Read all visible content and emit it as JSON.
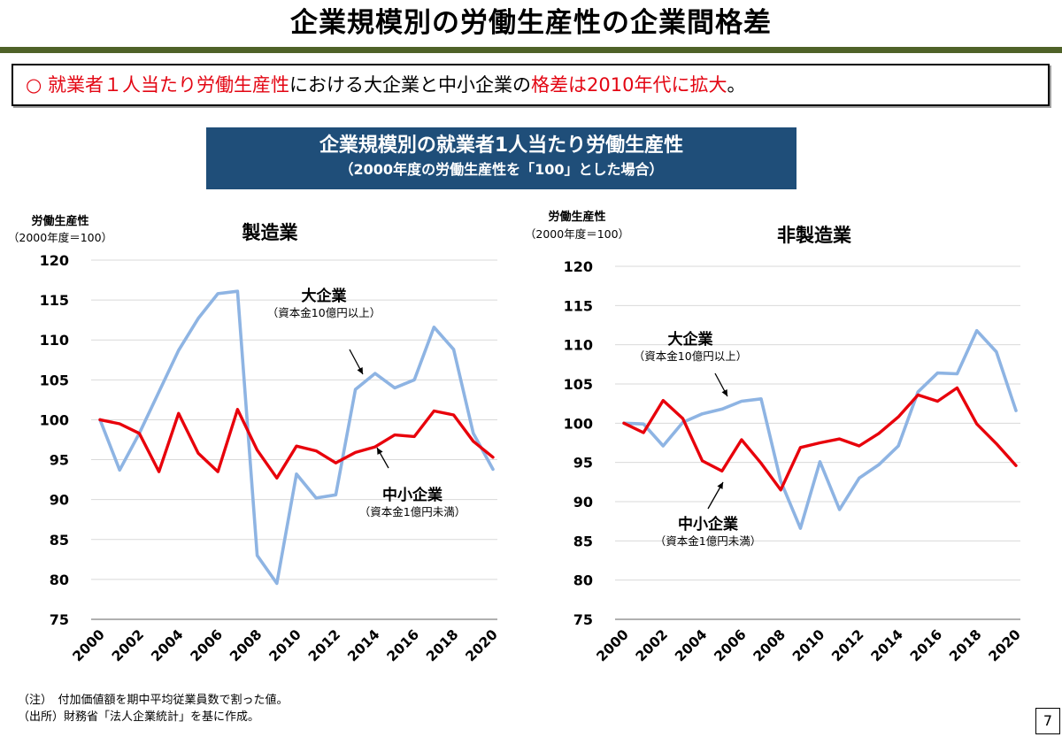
{
  "page": {
    "title": "企業規模別の労働生産性の企業間格差",
    "summary": {
      "marker": "○",
      "seg1": "就業者１人当たり労働生産性",
      "seg2": "における大企業と中小企業の",
      "seg3": "格差は2010年代に拡大",
      "seg4": "。"
    },
    "banner": {
      "line1": "企業規模別の就業者1人当たり労働生産性",
      "line2": "（2000年度の労働生産性を「100」とした場合）"
    },
    "notes": {
      "note": "（注）　付加価値額を期中平均従業員数で割った値。",
      "source": "（出所）財務省「法人企業統計」を基に作成。"
    },
    "page_number": "7"
  },
  "colors": {
    "large": "#8eb4e3",
    "small": "#e8000b",
    "grid": "#d9d9d9",
    "title_bar": "#4f6228",
    "banner": "#1f4e79",
    "highlight": "#e30613"
  },
  "chart_data": [
    {
      "type": "line",
      "title": "製造業",
      "ylabel_line1": "労働生産性",
      "ylabel_line2": "（2000年度＝100）",
      "ylim": [
        75,
        120
      ],
      "yticks": [
        75,
        80,
        85,
        90,
        95,
        100,
        105,
        110,
        115,
        120
      ],
      "x": [
        2000,
        2001,
        2002,
        2003,
        2004,
        2005,
        2006,
        2007,
        2008,
        2009,
        2010,
        2011,
        2012,
        2013,
        2014,
        2015,
        2016,
        2017,
        2018,
        2019,
        2020
      ],
      "xtick_labels": [
        "2000",
        "2002",
        "2004",
        "2006",
        "2008",
        "2010",
        "2012",
        "2014",
        "2016",
        "2018",
        "2020"
      ],
      "series": [
        {
          "name": "大企業",
          "note": "（資本金10億円以上）",
          "color": "#8eb4e3",
          "values": [
            100,
            93.7,
            98.3,
            103.5,
            108.7,
            112.7,
            115.8,
            116.1,
            83.0,
            79.5,
            93.2,
            90.2,
            90.6,
            103.8,
            105.8,
            104.0,
            105.0,
            111.6,
            108.8,
            98.3,
            93.8
          ]
        },
        {
          "name": "中小企業",
          "note": "（資本金1億円未満）",
          "color": "#e8000b",
          "values": [
            100,
            99.5,
            98.3,
            93.5,
            100.8,
            95.8,
            93.5,
            101.3,
            96.2,
            92.7,
            96.7,
            96.1,
            94.6,
            95.9,
            96.6,
            98.1,
            97.9,
            101.1,
            100.6,
            97.3,
            95.3
          ]
        }
      ]
    },
    {
      "type": "line",
      "title": "非製造業",
      "ylabel_line1": "労働生産性",
      "ylabel_line2": "（2000年度＝100）",
      "ylim": [
        75,
        120
      ],
      "yticks": [
        75,
        80,
        85,
        90,
        95,
        100,
        105,
        110,
        115,
        120
      ],
      "x": [
        2000,
        2001,
        2002,
        2003,
        2004,
        2005,
        2006,
        2007,
        2008,
        2009,
        2010,
        2011,
        2012,
        2013,
        2014,
        2015,
        2016,
        2017,
        2018,
        2019,
        2020
      ],
      "xtick_labels": [
        "2000",
        "2002",
        "2004",
        "2006",
        "2008",
        "2010",
        "2012",
        "2014",
        "2016",
        "2018",
        "2020"
      ],
      "series": [
        {
          "name": "大企業",
          "note": "（資本金10億円以上）",
          "color": "#8eb4e3",
          "values": [
            100,
            99.9,
            97.1,
            100.1,
            101.2,
            101.8,
            102.8,
            103.1,
            92.6,
            86.6,
            95.1,
            89.0,
            93.0,
            94.7,
            97.1,
            104.0,
            106.4,
            106.3,
            111.8,
            109.1,
            101.6
          ]
        },
        {
          "name": "中小企業",
          "note": "（資本金1億円未満）",
          "color": "#e8000b",
          "values": [
            100,
            98.8,
            102.9,
            100.6,
            95.2,
            93.9,
            97.9,
            94.9,
            91.5,
            96.9,
            97.5,
            98.0,
            97.1,
            98.7,
            100.8,
            103.6,
            102.8,
            104.5,
            99.9,
            97.4,
            94.6
          ]
        }
      ]
    }
  ]
}
